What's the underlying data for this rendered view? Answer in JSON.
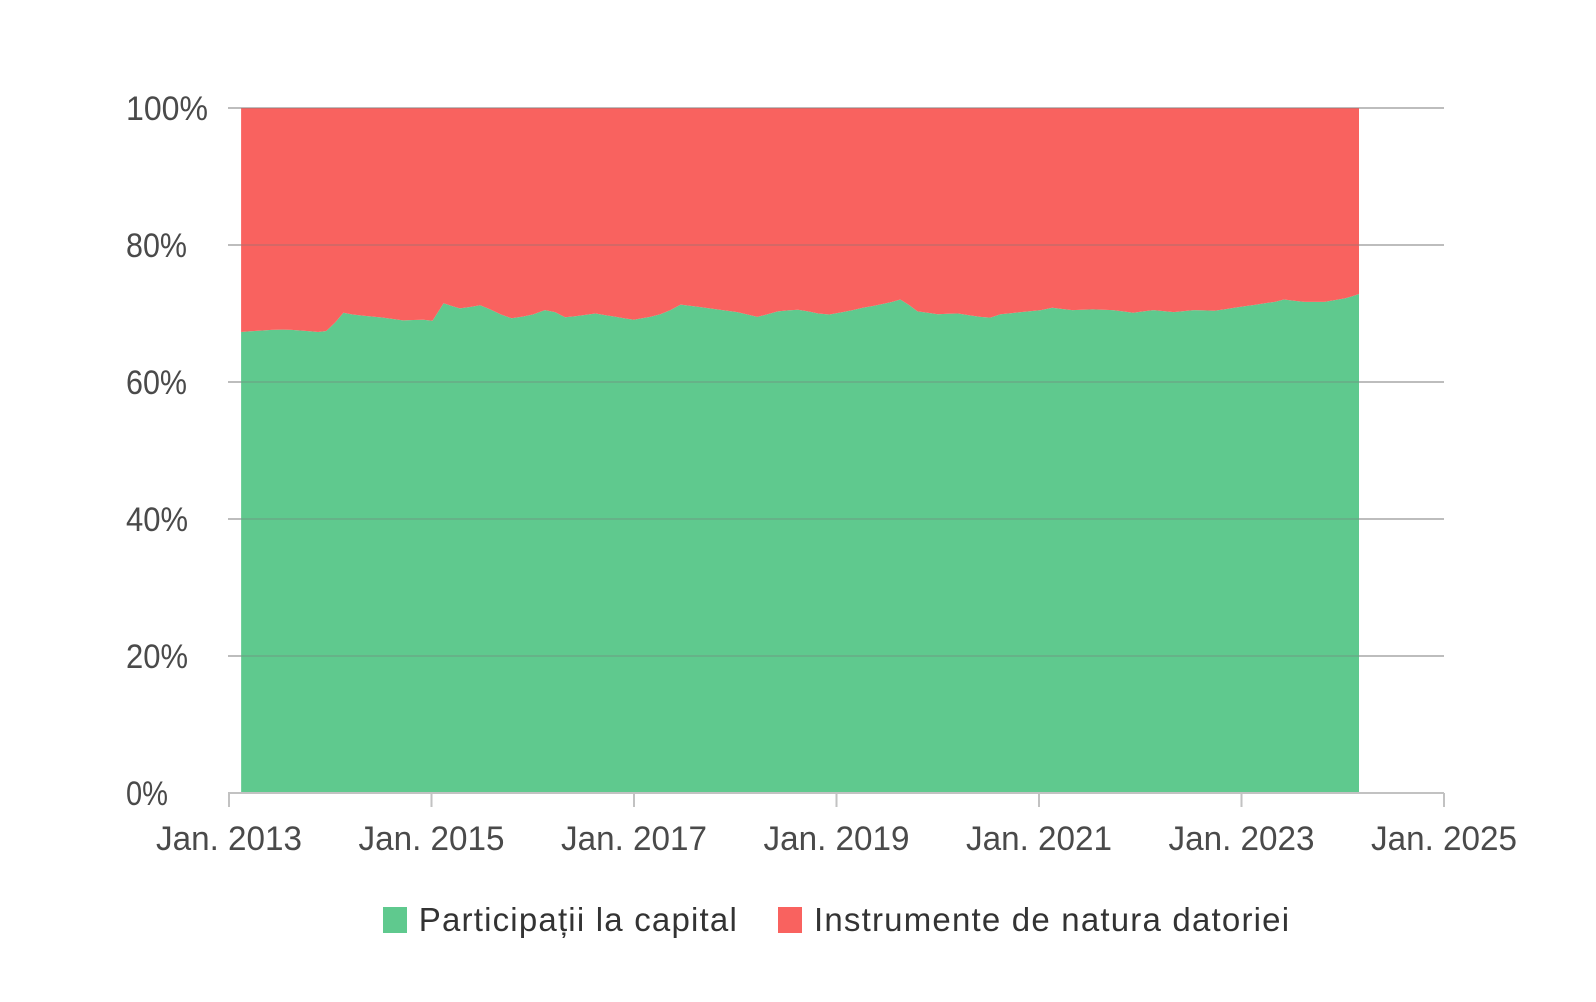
{
  "chart_data": {
    "type": "area",
    "stacking": "percent",
    "title": "",
    "xlabel": "",
    "ylabel": "",
    "x_unit": "decimal_year",
    "xlim": [
      2013,
      2025
    ],
    "x_tick_years": [
      2013,
      2015,
      2017,
      2019,
      2021,
      2023,
      2025
    ],
    "x_tick_labels": [
      "Jan. 2013",
      "Jan. 2015",
      "Jan. 2017",
      "Jan. 2019",
      "Jan. 2021",
      "Jan. 2023",
      "Jan. 2025"
    ],
    "ylim": [
      0,
      100
    ],
    "y_tick_values": [
      0,
      20,
      40,
      60,
      80,
      100
    ],
    "y_tick_labels": [
      "0%",
      "20%",
      "40%",
      "60%",
      "80%",
      "100%"
    ],
    "grid": true,
    "legend_position": "bottom",
    "series": [
      {
        "name": "Participații la capital",
        "color": "#5FC98E",
        "role": "bottom",
        "unit": "%",
        "points": [
          [
            2013.12,
            67.3
          ],
          [
            2013.21,
            67.4
          ],
          [
            2013.31,
            67.5
          ],
          [
            2013.42,
            67.6
          ],
          [
            2013.53,
            67.65
          ],
          [
            2013.62,
            67.6
          ],
          [
            2013.72,
            67.5
          ],
          [
            2013.8,
            67.4
          ],
          [
            2013.88,
            67.3
          ],
          [
            2013.96,
            67.45
          ],
          [
            2014.05,
            68.7
          ],
          [
            2014.13,
            70.1
          ],
          [
            2014.22,
            69.85
          ],
          [
            2014.32,
            69.7
          ],
          [
            2014.42,
            69.55
          ],
          [
            2014.52,
            69.4
          ],
          [
            2014.62,
            69.2
          ],
          [
            2014.72,
            69.0
          ],
          [
            2014.82,
            69.05
          ],
          [
            2014.92,
            69.1
          ],
          [
            2015.01,
            68.95
          ],
          [
            2015.12,
            71.5
          ],
          [
            2015.2,
            71.1
          ],
          [
            2015.28,
            70.75
          ],
          [
            2015.38,
            70.95
          ],
          [
            2015.48,
            71.2
          ],
          [
            2015.58,
            70.6
          ],
          [
            2015.68,
            69.9
          ],
          [
            2015.79,
            69.3
          ],
          [
            2015.9,
            69.55
          ],
          [
            2016.0,
            69.85
          ],
          [
            2016.12,
            70.5
          ],
          [
            2016.22,
            70.2
          ],
          [
            2016.32,
            69.45
          ],
          [
            2016.42,
            69.6
          ],
          [
            2016.52,
            69.8
          ],
          [
            2016.62,
            70.0
          ],
          [
            2016.72,
            69.75
          ],
          [
            2016.81,
            69.55
          ],
          [
            2016.9,
            69.3
          ],
          [
            2017.0,
            69.1
          ],
          [
            2017.08,
            69.3
          ],
          [
            2017.16,
            69.5
          ],
          [
            2017.26,
            69.9
          ],
          [
            2017.36,
            70.5
          ],
          [
            2017.46,
            71.3
          ],
          [
            2017.54,
            71.15
          ],
          [
            2017.62,
            71.0
          ],
          [
            2017.72,
            70.8
          ],
          [
            2017.82,
            70.6
          ],
          [
            2017.92,
            70.4
          ],
          [
            2018.02,
            70.2
          ],
          [
            2018.12,
            69.85
          ],
          [
            2018.22,
            69.5
          ],
          [
            2018.32,
            69.9
          ],
          [
            2018.42,
            70.3
          ],
          [
            2018.52,
            70.45
          ],
          [
            2018.62,
            70.55
          ],
          [
            2018.72,
            70.3
          ],
          [
            2018.82,
            70.0
          ],
          [
            2018.93,
            69.85
          ],
          [
            2019.06,
            70.2
          ],
          [
            2019.16,
            70.5
          ],
          [
            2019.26,
            70.85
          ],
          [
            2019.36,
            71.1
          ],
          [
            2019.46,
            71.4
          ],
          [
            2019.55,
            71.7
          ],
          [
            2019.63,
            72.05
          ],
          [
            2019.72,
            71.2
          ],
          [
            2019.8,
            70.3
          ],
          [
            2019.9,
            70.1
          ],
          [
            2020.0,
            69.9
          ],
          [
            2020.1,
            69.95
          ],
          [
            2020.2,
            70.0
          ],
          [
            2020.31,
            69.75
          ],
          [
            2020.42,
            69.5
          ],
          [
            2020.52,
            69.4
          ],
          [
            2020.62,
            69.9
          ],
          [
            2020.72,
            70.05
          ],
          [
            2020.82,
            70.2
          ],
          [
            2020.92,
            70.35
          ],
          [
            2021.02,
            70.5
          ],
          [
            2021.13,
            70.85
          ],
          [
            2021.23,
            70.65
          ],
          [
            2021.33,
            70.5
          ],
          [
            2021.43,
            70.55
          ],
          [
            2021.53,
            70.6
          ],
          [
            2021.63,
            70.55
          ],
          [
            2021.73,
            70.5
          ],
          [
            2021.83,
            70.3
          ],
          [
            2021.93,
            70.1
          ],
          [
            2022.03,
            70.3
          ],
          [
            2022.13,
            70.5
          ],
          [
            2022.23,
            70.35
          ],
          [
            2022.33,
            70.2
          ],
          [
            2022.43,
            70.35
          ],
          [
            2022.53,
            70.5
          ],
          [
            2022.63,
            70.45
          ],
          [
            2022.73,
            70.4
          ],
          [
            2022.83,
            70.6
          ],
          [
            2022.93,
            70.85
          ],
          [
            2023.03,
            71.05
          ],
          [
            2023.13,
            71.25
          ],
          [
            2023.23,
            71.5
          ],
          [
            2023.33,
            71.7
          ],
          [
            2023.42,
            72.05
          ],
          [
            2023.52,
            71.85
          ],
          [
            2023.62,
            71.7
          ],
          [
            2023.72,
            71.7
          ],
          [
            2023.82,
            71.7
          ],
          [
            2023.92,
            71.95
          ],
          [
            2024.02,
            72.2
          ],
          [
            2024.09,
            72.5
          ],
          [
            2024.16,
            72.85
          ]
        ]
      },
      {
        "name": "Instrumente de natura datoriei",
        "color": "#F9625F",
        "role": "top",
        "unit": "%",
        "note": "stacked above first series up to 100%"
      }
    ]
  },
  "style_colors": {
    "background": "#ffffff",
    "grid_line": "#c9c9c9",
    "grid_line_over_area": "rgba(120,120,120,0.38)",
    "axis_line": "#c2c2c2",
    "axis_text": "#4a4a4a",
    "legend_text": "#333333"
  }
}
